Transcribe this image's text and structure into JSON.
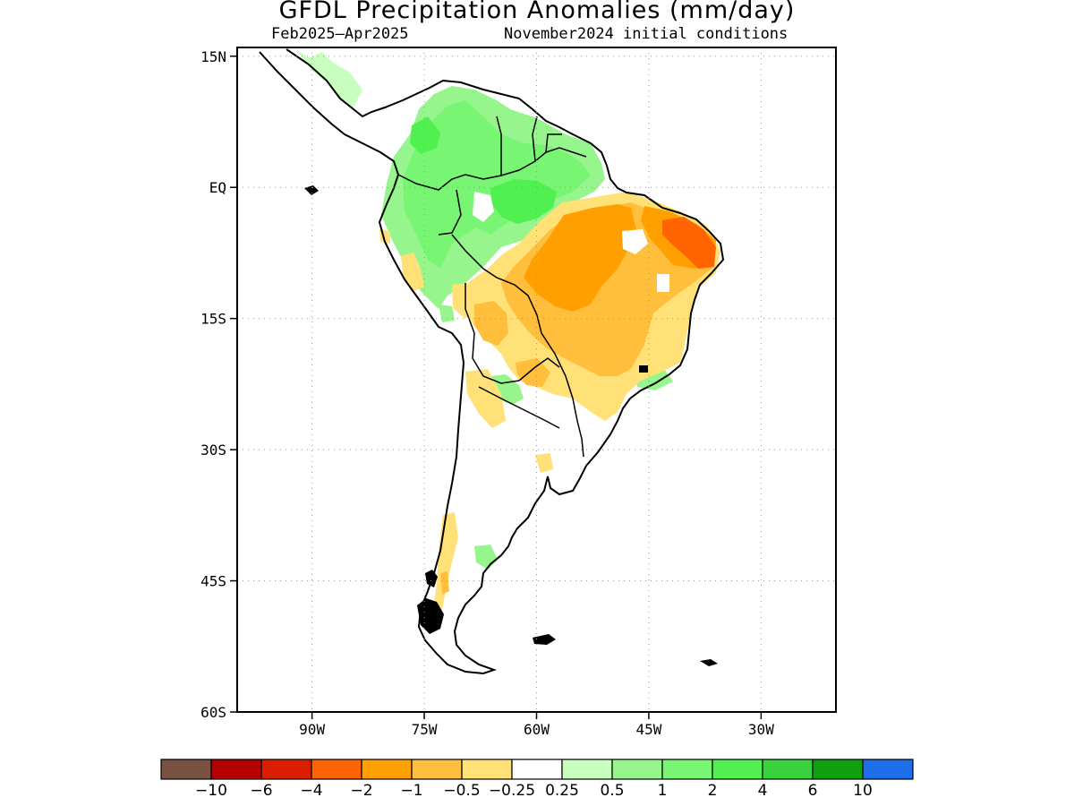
{
  "title": "GFDL Precipitation Anomalies (mm/day)",
  "subtitle_period": "Feb2025–Apr2025",
  "subtitle_init": "November2024 initial conditions",
  "map": {
    "lon_range": [
      -100,
      -20
    ],
    "lat_range": [
      -60,
      16
    ],
    "lon_ticks": [
      {
        "value": -90,
        "label": "90W"
      },
      {
        "value": -75,
        "label": "75W"
      },
      {
        "value": -60,
        "label": "60W"
      },
      {
        "value": -45,
        "label": "45W"
      },
      {
        "value": -30,
        "label": "30W"
      }
    ],
    "lat_ticks": [
      {
        "value": 15,
        "label": "15N"
      },
      {
        "value": 0,
        "label": "EQ"
      },
      {
        "value": -15,
        "label": "15S"
      },
      {
        "value": -30,
        "label": "30S"
      },
      {
        "value": -45,
        "label": "45S"
      },
      {
        "value": -60,
        "label": "60S"
      }
    ],
    "grid": "dotted"
  },
  "colorbar": {
    "colors": [
      "#7a5244",
      "#b40000",
      "#dc1e00",
      "#ff6400",
      "#ffa000",
      "#ffbe3c",
      "#ffe178",
      "#ffffff",
      "#c8ffbe",
      "#96f58c",
      "#78f573",
      "#50f050",
      "#37d23c",
      "#0fa00f",
      "#1e6eeb"
    ],
    "labels": [
      "−10",
      "−6",
      "−4",
      "−2",
      "−1",
      "−0.5",
      "−0.25",
      "0.25",
      "0.5",
      "1",
      "2",
      "4",
      "6",
      "10"
    ]
  }
}
